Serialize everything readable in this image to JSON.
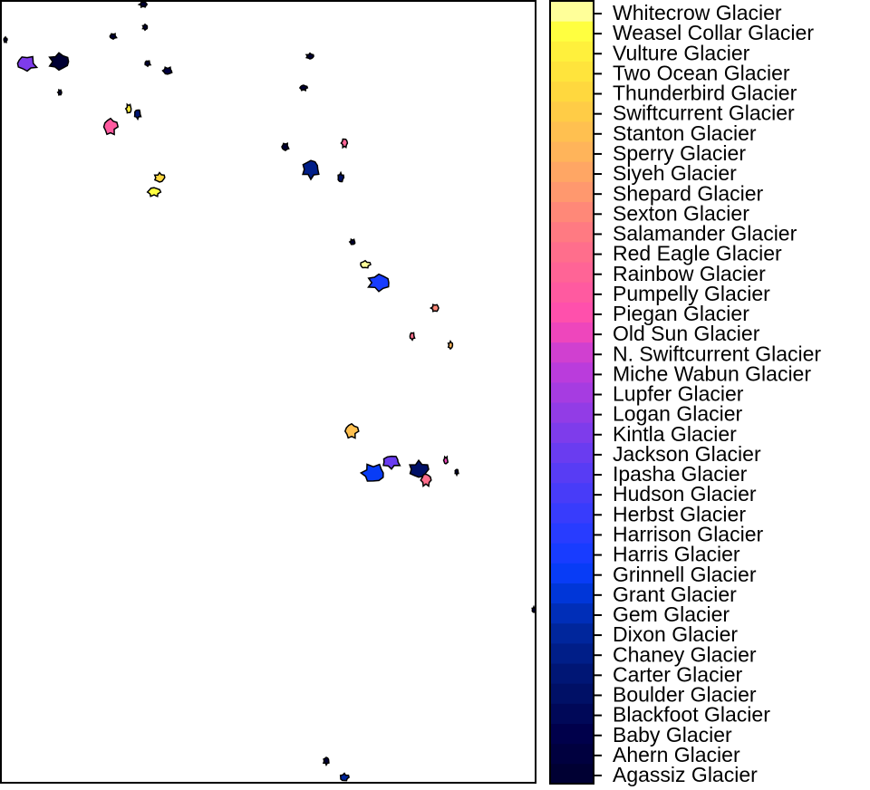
{
  "legend": {
    "items": [
      {
        "name": "Agassiz Glacier",
        "color": "#000033"
      },
      {
        "name": "Ahern Glacier",
        "color": "#00003f"
      },
      {
        "name": "Baby Glacier",
        "color": "#00004b"
      },
      {
        "name": "Blackfoot Glacier",
        "color": "#000858"
      },
      {
        "name": "Boulder Glacier",
        "color": "#001066"
      },
      {
        "name": "Carter Glacier",
        "color": "#001675"
      },
      {
        "name": "Chaney Glacier",
        "color": "#001e88"
      },
      {
        "name": "Dixon Glacier",
        "color": "#00269c"
      },
      {
        "name": "Gem Glacier",
        "color": "#002eb8"
      },
      {
        "name": "Grant Glacier",
        "color": "#0036d8"
      },
      {
        "name": "Grinnell Glacier",
        "color": "#083cf6"
      },
      {
        "name": "Harris Glacier",
        "color": "#183cff"
      },
      {
        "name": "Harrison Glacier",
        "color": "#283cff"
      },
      {
        "name": "Herbst Glacier",
        "color": "#383cfc"
      },
      {
        "name": "Hudson Glacier",
        "color": "#483cf8"
      },
      {
        "name": "Ipasha Glacier",
        "color": "#583cf4"
      },
      {
        "name": "Jackson Glacier",
        "color": "#6a3cf0"
      },
      {
        "name": "Kintla Glacier",
        "color": "#7e3ceb"
      },
      {
        "name": "Logan Glacier",
        "color": "#923ce6"
      },
      {
        "name": "Lupfer Glacier",
        "color": "#a63ce1"
      },
      {
        "name": "Miche Wabun Glacier",
        "color": "#ba3cdc"
      },
      {
        "name": "N. Swiftcurrent Glacier",
        "color": "#d040d0"
      },
      {
        "name": "Old Sun Glacier",
        "color": "#ee46bc"
      },
      {
        "name": "Piegan Glacier",
        "color": "#ff50ac"
      },
      {
        "name": "Pumpelly Glacier",
        "color": "#ff5aa0"
      },
      {
        "name": "Rainbow Glacier",
        "color": "#ff6496"
      },
      {
        "name": "Red Eagle Glacier",
        "color": "#ff6e8c"
      },
      {
        "name": "Salamander Glacier",
        "color": "#ff7a82"
      },
      {
        "name": "Sexton Glacier",
        "color": "#ff8878"
      },
      {
        "name": "Shepard Glacier",
        "color": "#ff986e"
      },
      {
        "name": "Siyeh Glacier",
        "color": "#ffa664"
      },
      {
        "name": "Sperry Glacier",
        "color": "#ffb45a"
      },
      {
        "name": "Stanton Glacier",
        "color": "#ffc050"
      },
      {
        "name": "Swiftcurrent Glacier",
        "color": "#ffcc46"
      },
      {
        "name": "Thunderbird Glacier",
        "color": "#ffd83e"
      },
      {
        "name": "Two Ocean Glacier",
        "color": "#ffe43c"
      },
      {
        "name": "Vulture Glacier",
        "color": "#fff03c"
      },
      {
        "name": "Weasel Collar Glacier",
        "color": "#ffff40"
      },
      {
        "name": "Whitecrow Glacier",
        "color": "#ffff99"
      }
    ]
  }
}
